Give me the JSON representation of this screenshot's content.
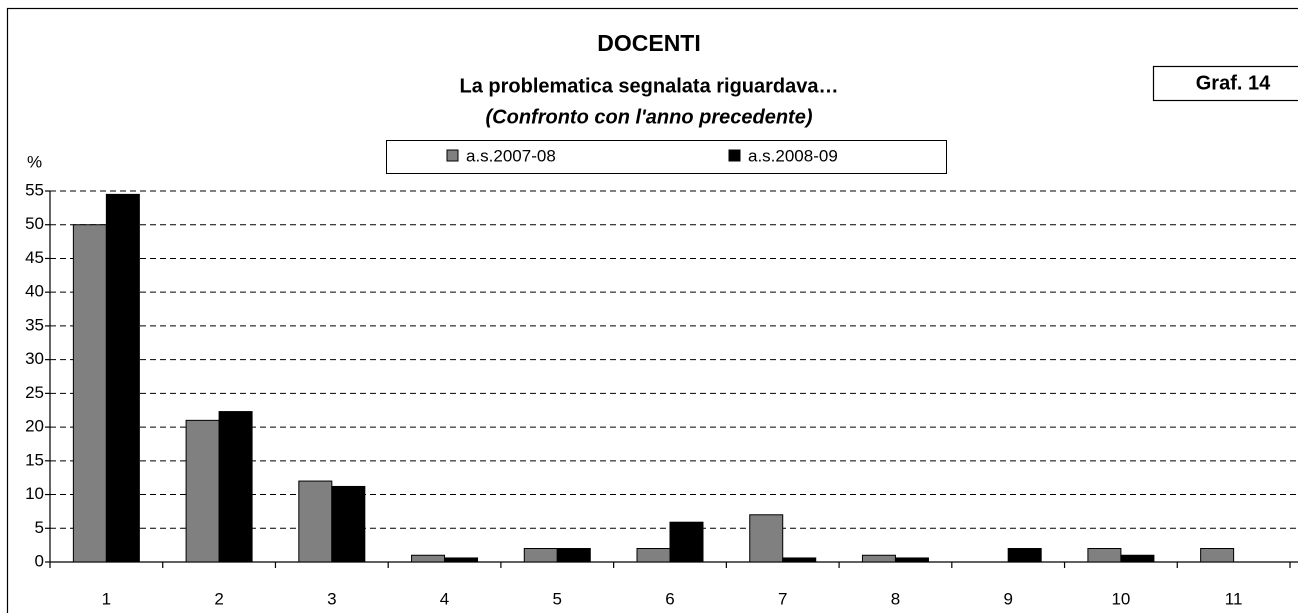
{
  "chart_data": {
    "type": "bar",
    "title": "DOCENTI",
    "subtitle": "La problematica segnalata riguardava…",
    "annotation": "(Confronto con l'anno precedente)",
    "label": "Graf. 14",
    "y_label": "%",
    "categories": [
      "1",
      "2",
      "3",
      "4",
      "5",
      "6",
      "7",
      "8",
      "9",
      "10",
      "11"
    ],
    "series": [
      {
        "name": "a.s.2007-08",
        "color": "#808080",
        "values": [
          50,
          21,
          12,
          1,
          2,
          2,
          7,
          1,
          0,
          2,
          2
        ]
      },
      {
        "name": "a.s.2008-09",
        "color": "#000000",
        "values": [
          54.5,
          22.3,
          11.2,
          0.6,
          2,
          5.9,
          0.6,
          0.6,
          2,
          1,
          0
        ]
      }
    ],
    "ylim": [
      0,
      55
    ],
    "yticks": [
      0,
      5,
      10,
      15,
      20,
      25,
      30,
      35,
      40,
      45,
      50,
      55
    ],
    "grid": true
  }
}
